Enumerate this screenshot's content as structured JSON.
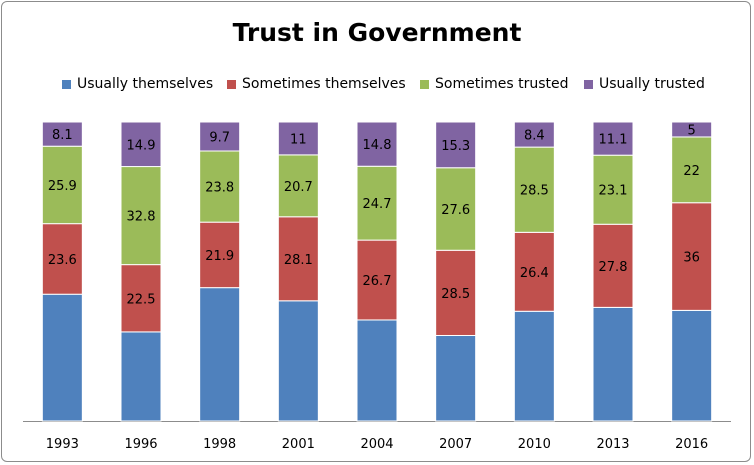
{
  "chart_data": {
    "type": "bar",
    "stacked": true,
    "title": "Trust in Government",
    "xlabel": "",
    "ylabel": "",
    "ylim": [
      0,
      100
    ],
    "grid": false,
    "legend_position": "top",
    "categories": [
      "1993",
      "1996",
      "1998",
      "2001",
      "2004",
      "2007",
      "2010",
      "2013",
      "2016"
    ],
    "series": [
      {
        "name": "Usually themselves",
        "color": "#4f81bd",
        "values": [
          42.4,
          29.8,
          44.6,
          40.2,
          33.8,
          28.6,
          36.7,
          38.0,
          37.0
        ],
        "show_labels": false
      },
      {
        "name": "Sometimes themselves",
        "color": "#c0504d",
        "values": [
          23.6,
          22.5,
          21.9,
          28.1,
          26.7,
          28.5,
          26.4,
          27.8,
          36
        ],
        "show_labels": true
      },
      {
        "name": "Sometimes trusted",
        "color": "#9bbb59",
        "values": [
          25.9,
          32.8,
          23.8,
          20.7,
          24.7,
          27.6,
          28.5,
          23.1,
          22
        ],
        "show_labels": true
      },
      {
        "name": "Usually trusted",
        "color": "#8064a2",
        "values": [
          8.1,
          14.9,
          9.7,
          11,
          14.8,
          15.3,
          8.4,
          11.1,
          5
        ],
        "show_labels": true
      }
    ]
  }
}
